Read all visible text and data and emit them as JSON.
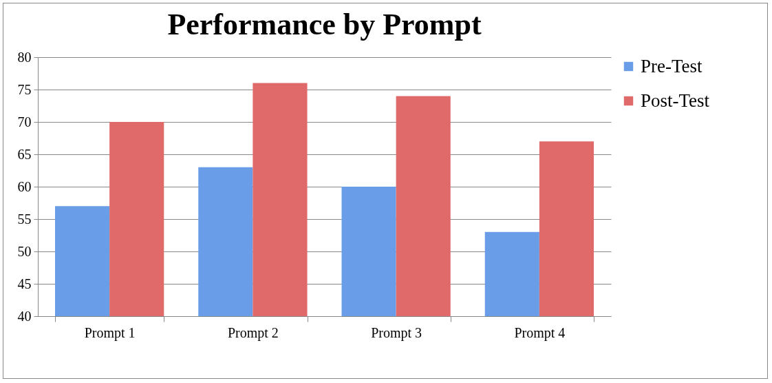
{
  "chart_data": {
    "type": "bar",
    "title": "Performance by Prompt",
    "categories": [
      "Prompt 1",
      "Prompt 2",
      "Prompt 3",
      "Prompt 4"
    ],
    "series": [
      {
        "name": "Pre-Test",
        "color": "#6a9de8",
        "values": [
          57,
          63,
          60,
          53
        ]
      },
      {
        "name": "Post-Test",
        "color": "#e06a6a",
        "values": [
          70,
          76,
          74,
          67
        ]
      }
    ],
    "ylim": [
      40,
      80
    ],
    "yticks": [
      40,
      45,
      50,
      55,
      60,
      65,
      70,
      75,
      80
    ],
    "grid": "y",
    "legend": "right"
  }
}
